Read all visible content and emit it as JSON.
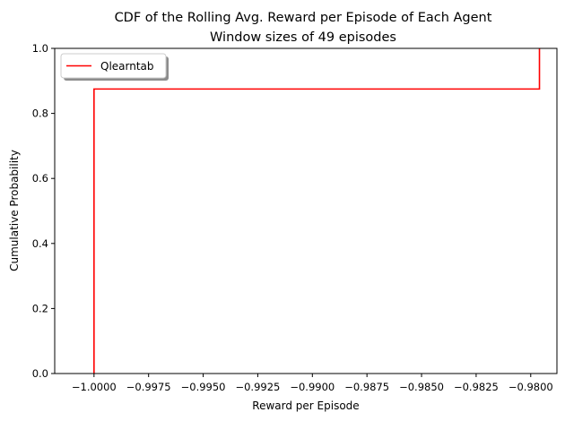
{
  "chart_data": {
    "type": "line",
    "title": "CDF of the Rolling Avg. Reward per Episode of Each Agent",
    "subtitle": "Window sizes of 49 episodes",
    "xlabel": "Reward per Episode",
    "ylabel": "Cumulative Probability",
    "xlim": [
      -1.0018,
      -0.9788
    ],
    "ylim": [
      0,
      1.0
    ],
    "xticks": [
      -1.0,
      -0.9975,
      -0.995,
      -0.9925,
      -0.99,
      -0.9875,
      -0.985,
      -0.9825,
      -0.98
    ],
    "xtick_labels": [
      "−1.0000",
      "−0.9975",
      "−0.9950",
      "−0.9925",
      "−0.9900",
      "−0.9875",
      "−0.9850",
      "−0.9825",
      "−0.9800"
    ],
    "yticks": [
      0.0,
      0.2,
      0.4,
      0.6,
      0.8,
      1.0
    ],
    "ytick_labels": [
      "0.0",
      "0.2",
      "0.4",
      "0.6",
      "0.8",
      "1.0"
    ],
    "grid": false,
    "legend_position": "top-left",
    "series": [
      {
        "name": "Qlearntab",
        "color": "#ff0000",
        "step_points": [
          [
            -1.0,
            0.0
          ],
          [
            -1.0,
            0.875
          ],
          [
            -0.9796,
            0.875
          ],
          [
            -0.9796,
            1.0
          ]
        ]
      }
    ]
  }
}
